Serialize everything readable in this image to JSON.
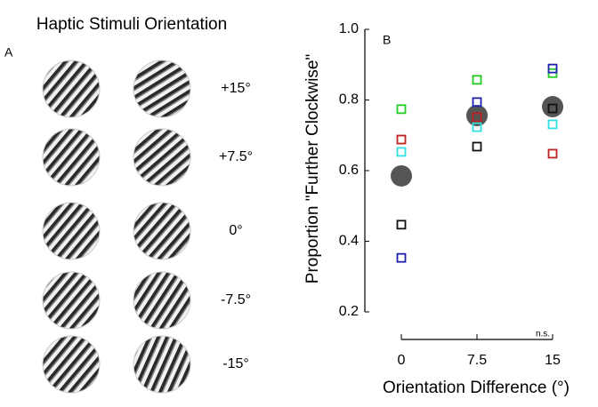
{
  "panel_a": {
    "title": "Haptic Stimuli Orientation",
    "label": "A",
    "orientations": [
      "+15°",
      "+7.5°",
      "0°",
      "-7.5°",
      "-15°"
    ]
  },
  "chart_data": {
    "type": "scatter",
    "label": "B",
    "annotation": "n.s.",
    "xlabel": "Orientation Difference (°)",
    "ylabel": "Proportion \"Further Clockwise\"",
    "x": [
      0,
      7.5,
      15
    ],
    "xlim": [
      0,
      15
    ],
    "xticks": [
      0,
      7.5,
      15
    ],
    "ylim": [
      0.2,
      1
    ],
    "yticks": [
      0.2,
      0.4,
      0.6,
      0.8,
      {
        "value": 1,
        "label": "1.0"
      }
    ],
    "grid": false,
    "series": [
      {
        "color": "#555555",
        "marker": "circle",
        "values": [
          0.585,
          0.756,
          0.781
        ]
      },
      {
        "color": "#22cc22",
        "marker": "square",
        "values": [
          0.774,
          0.857,
          0.876
        ]
      },
      {
        "color": "#c02020",
        "marker": "square",
        "values": [
          0.688,
          0.751,
          0.648
        ]
      },
      {
        "color": "#30e0e0",
        "marker": "square",
        "values": [
          0.653,
          0.723,
          0.731
        ]
      },
      {
        "color": "#111111",
        "marker": "square",
        "values": [
          0.447,
          0.668,
          0.776
        ]
      },
      {
        "color": "#2020b0",
        "marker": "square",
        "values": [
          0.353,
          0.794,
          0.889
        ]
      }
    ]
  }
}
